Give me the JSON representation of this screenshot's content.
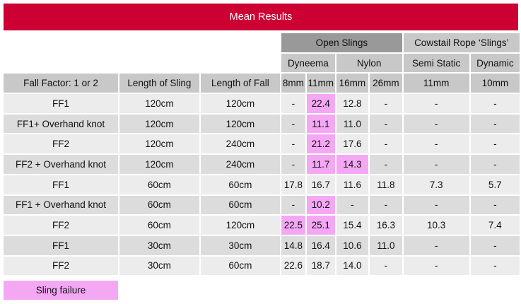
{
  "title": "Mean Results",
  "header": {
    "group_open": "Open Slings",
    "group_cowstail": "Cowstail Rope ‘Slings’",
    "dyneema": "Dyneema",
    "nylon": "Nylon",
    "semi_static": "Semi Static",
    "dynamic": "Dynamic",
    "col_fall_factor": "Fall Factor: 1 or 2",
    "col_length_sling": "Length of Sling",
    "col_length_fall": "Length of Fall",
    "sizes": [
      "8mm",
      "11mm",
      "16mm",
      "26mm",
      "11mm",
      "10mm"
    ]
  },
  "rows": [
    {
      "cells": [
        "FF1",
        "120cm",
        "120cm",
        "-",
        "22.4",
        "12.8",
        "-",
        "-",
        "-"
      ],
      "failures": [
        4
      ]
    },
    {
      "cells": [
        "FF1+ Overhand knot",
        "120cm",
        "120cm",
        "-",
        "11.1",
        "11.0",
        "-",
        "-",
        "-"
      ],
      "failures": [
        4
      ]
    },
    {
      "cells": [
        "FF2",
        "120cm",
        "240cm",
        "-",
        "21.2",
        "17.6",
        "-",
        "-",
        "-"
      ],
      "failures": [
        4
      ]
    },
    {
      "cells": [
        "FF2 + Overhand knot",
        "120cm",
        "240cm",
        "-",
        "11.7",
        "14.3",
        "-",
        "-",
        "-"
      ],
      "failures": [
        4,
        5
      ]
    },
    {
      "cells": [
        "FF1",
        "60cm",
        "60cm",
        "17.8",
        "16.7",
        "11.6",
        "11.8",
        "7.3",
        "5.7"
      ],
      "failures": []
    },
    {
      "cells": [
        "FF1 + Overhand knot",
        "60cm",
        "60cm",
        "-",
        "10.2",
        "-",
        "-",
        "-",
        "-"
      ],
      "failures": [
        4
      ]
    },
    {
      "cells": [
        "FF2",
        "60cm",
        "120cm",
        "22.5",
        "25.1",
        "15.4",
        "16.3",
        "10.3",
        "7.4"
      ],
      "failures": [
        3,
        4
      ]
    },
    {
      "cells": [
        "FF1",
        "30cm",
        "30cm",
        "14.8",
        "16.4",
        "10.6",
        "11.0",
        "-",
        "-"
      ],
      "failures": []
    },
    {
      "cells": [
        "FF2",
        "30cm",
        "60cm",
        "22.6",
        "18.7",
        "14.0",
        "-",
        "-",
        "-"
      ],
      "failures": []
    }
  ],
  "legend": {
    "label": "Sling failure",
    "color": "#f4a8f4"
  },
  "colors": {
    "banner": "#cc0033",
    "header_dark": "#999999",
    "header_light": "#c8c8c8",
    "row_light": "#dcdcdc",
    "row_lighter": "#ececec",
    "failure": "#f4a8f4"
  }
}
